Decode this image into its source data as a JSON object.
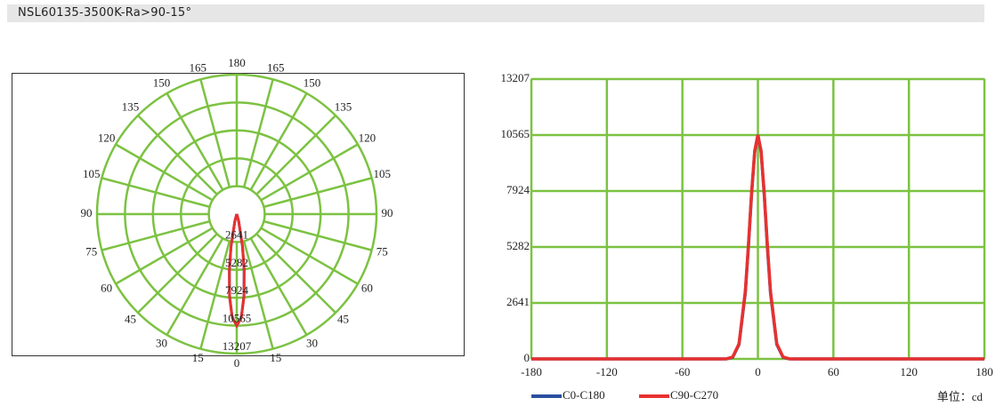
{
  "header": {
    "title": "NSL60135-3500K-Ra>90-15°"
  },
  "chart_data": [
    {
      "type": "polar",
      "rlim": [
        0,
        13207
      ],
      "rticks": [
        2641,
        5282,
        7924,
        10565,
        13207
      ],
      "thetaticks": [
        0,
        15,
        30,
        45,
        60,
        75,
        90,
        105,
        120,
        135,
        150,
        165,
        180,
        {
          "value": -15,
          "label": "15"
        },
        {
          "value": -30,
          "label": "30"
        },
        {
          "value": -45,
          "label": "45"
        },
        {
          "value": -60,
          "label": "60"
        },
        {
          "value": -75,
          "label": "75"
        },
        {
          "value": -90,
          "label": "90"
        },
        {
          "value": -105,
          "label": "105"
        },
        {
          "value": -120,
          "label": "120"
        },
        {
          "value": -135,
          "label": "135"
        },
        {
          "value": -150,
          "label": "150"
        },
        {
          "value": -165,
          "label": "165"
        }
      ],
      "grid": true,
      "grid_color": "#7cc242",
      "theta": [
        -180,
        -40,
        -30,
        -25,
        -20,
        -15,
        -10,
        -7.5,
        -5,
        -2.5,
        0,
        2.5,
        5,
        7.5,
        10,
        15,
        20,
        25,
        30,
        40,
        180
      ],
      "series": [
        {
          "color": "#2a4f9e",
          "values": [
            0,
            0,
            0,
            2,
            80,
            681,
            3117,
            5321,
            7787,
            9794,
            10565,
            9794,
            7787,
            5321,
            3117,
            681,
            80,
            2,
            0,
            0,
            0
          ]
        },
        {
          "color": "#e8312f",
          "values": [
            0,
            0,
            0,
            3,
            95,
            720,
            3200,
            5400,
            7850,
            9820,
            10565,
            9820,
            7850,
            5400,
            3200,
            720,
            95,
            3,
            0,
            0,
            0
          ]
        }
      ]
    },
    {
      "type": "line",
      "xlim": [
        -180,
        180
      ],
      "xticks": [
        -180,
        -120,
        -60,
        0,
        60,
        120,
        180
      ],
      "ylim": [
        0,
        13207
      ],
      "yticks": [
        0,
        2641,
        5282,
        7924,
        10565,
        13207
      ],
      "grid": true,
      "grid_color": "#7cc242",
      "x": [
        -180,
        -40,
        -30,
        -25,
        -20,
        -15,
        -10,
        -7.5,
        -5,
        -2.5,
        0,
        2.5,
        5,
        7.5,
        10,
        15,
        20,
        25,
        30,
        40,
        180
      ],
      "series": [
        {
          "name": "C0-C180",
          "color": "#2a4f9e",
          "values": [
            0,
            0,
            0,
            2,
            80,
            681,
            3117,
            5321,
            7787,
            9794,
            10565,
            9794,
            7787,
            5321,
            3117,
            681,
            80,
            2,
            0,
            0,
            0
          ]
        },
        {
          "name": "C90-C270",
          "color": "#e8312f",
          "values": [
            0,
            0,
            0,
            3,
            95,
            720,
            3200,
            5400,
            7850,
            9820,
            10565,
            9820,
            7850,
            5400,
            3200,
            720,
            95,
            3,
            0,
            0,
            0
          ]
        }
      ],
      "unit_label": "单位：cd"
    }
  ]
}
